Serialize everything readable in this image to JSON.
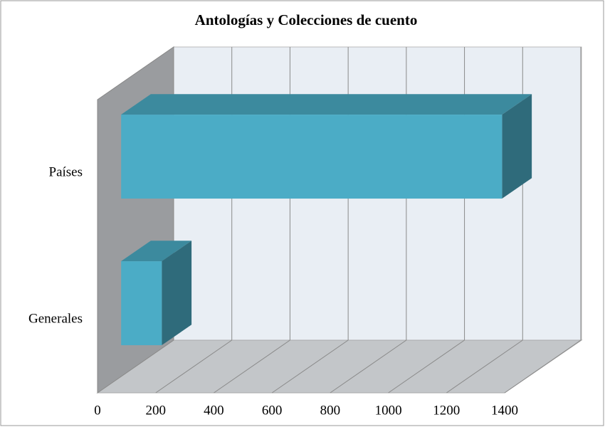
{
  "chart_data": {
    "type": "bar3d-horizontal",
    "title": "Antologías y Colecciones de cuento",
    "categories": [
      "Países",
      "Generales"
    ],
    "values": [
      1310,
      140
    ],
    "color": "#4bacc6",
    "xlim": [
      0,
      1400
    ],
    "xticks": [
      0,
      200,
      400,
      600,
      800,
      1000,
      1200,
      1400
    ],
    "grid": true
  }
}
